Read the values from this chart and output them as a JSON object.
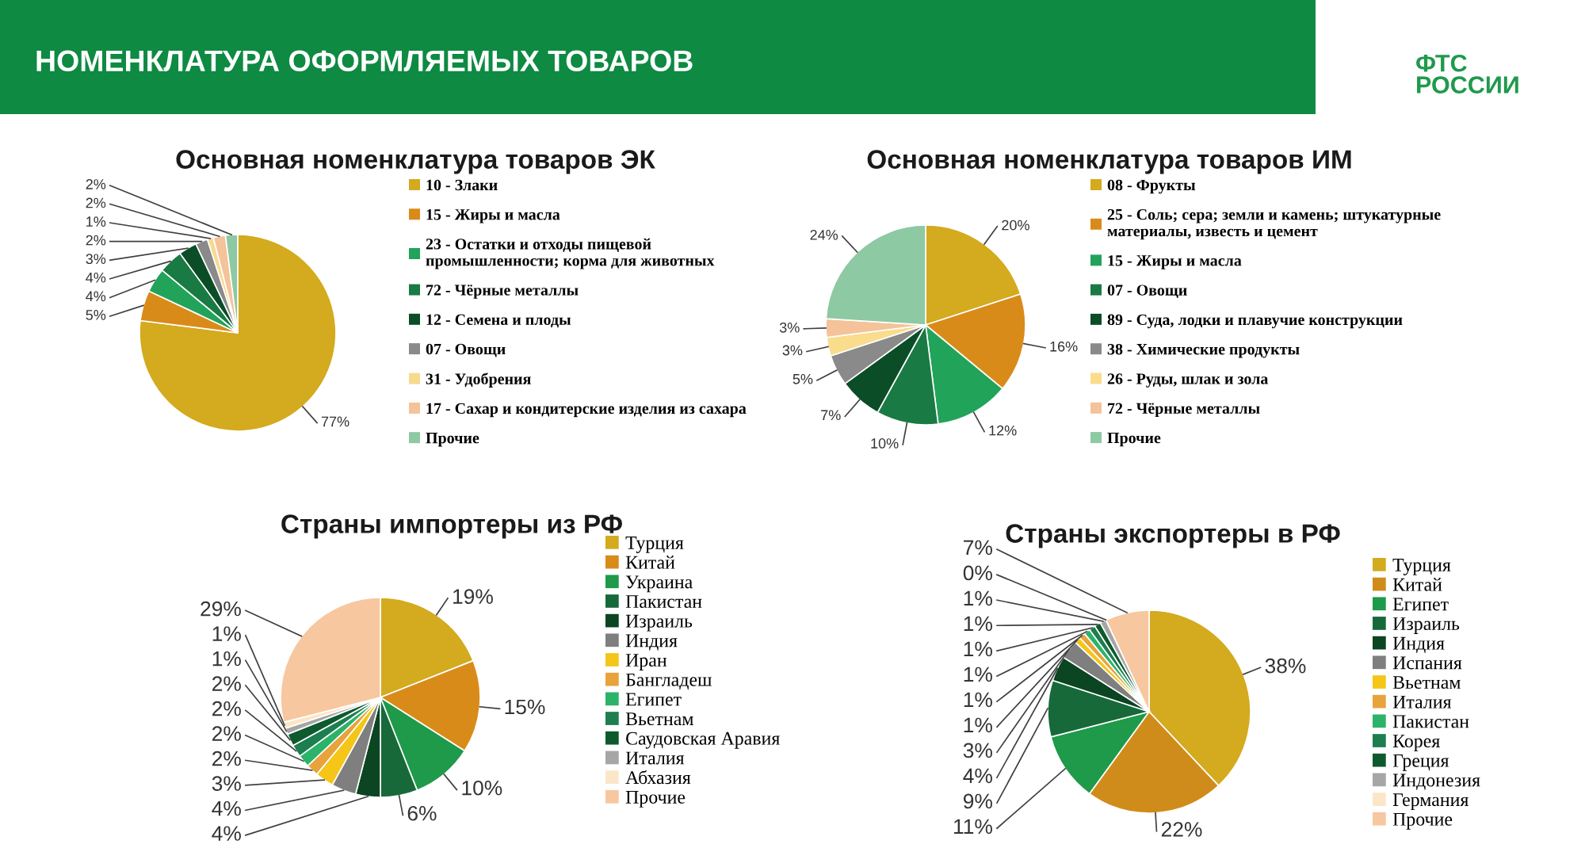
{
  "chart_data": [
    {
      "type": "pie",
      "title": "Основная номенклатура товаров ЭК",
      "categories": [
        "10 - Злаки",
        "15 - Жиры и масла",
        "23 - Остатки и отходы пищевой\nпромышленности; корма для животных",
        "72 - Чёрные металлы",
        "12 - Семена и плоды",
        "07 - Овощи",
        "31 - Удобрения",
        "17 - Сахар и кондитерские изделия из сахара",
        "Прочие"
      ],
      "values": [
        77,
        5,
        4,
        4,
        3,
        2,
        1,
        2,
        2
      ],
      "colors": [
        "#d4aa1e",
        "#d98b1a",
        "#22a35a",
        "#1a7a43",
        "#0b4d27",
        "#8a8a8a",
        "#f7d98f",
        "#f4c39a",
        "#8dc9a3"
      ],
      "value_labels": [
        "77%",
        "5%",
        "4%",
        "4%",
        "3%",
        "2%",
        "1%",
        "2%",
        "2%"
      ],
      "legend": "right",
      "annotations": [
        "НОМЕНКЛАТУРА ОФОРМЛЯЕМЫХ ТОВАРОВ",
        "ФТС\nРОССИИ"
      ]
    },
    {
      "type": "pie",
      "title": "Основная номенклатура товаров ИМ",
      "categories": [
        "08 - Фрукты",
        "25 - Соль; сера; земли и камень; штукатурные\nматериалы, известь и цемент",
        "15 - Жиры и масла",
        "07 - Овощи",
        "89 - Суда, лодки и плавучие конструкции",
        "38 - Химические продукты",
        "26 - Руды, шлак и зола",
        "72 - Чёрные металлы",
        "Прочие"
      ],
      "values": [
        20,
        16,
        12,
        10,
        7,
        5,
        3,
        3,
        24
      ],
      "colors": [
        "#d4aa1e",
        "#d98b1a",
        "#22a35a",
        "#1a7a43",
        "#0b4d27",
        "#8a8a8a",
        "#f9dc8c",
        "#f4c39a",
        "#8dc9a3"
      ],
      "value_labels": [
        "20%",
        "16%",
        "12%",
        "10%",
        "7%",
        "5%",
        "3%",
        "3%",
        "24%"
      ],
      "legend": "right"
    },
    {
      "type": "pie",
      "title": "Страны импортеры из РФ",
      "categories": [
        "Турция",
        "Китай",
        "Украина",
        "Пакистан",
        "Израиль",
        "Индия",
        "Иран",
        "Бангладеш",
        "Египет",
        "Вьетнам",
        "Саудовская Аравия",
        "Италия",
        "Абхазия",
        "Прочие"
      ],
      "values": [
        19,
        15,
        10,
        6,
        4,
        4,
        3,
        2,
        2,
        2,
        2,
        1,
        1,
        29
      ],
      "colors": [
        "#d4aa1e",
        "#d98b1a",
        "#1e9a4a",
        "#17693a",
        "#0b4522",
        "#7f7f7f",
        "#f5c518",
        "#e8a33c",
        "#2cb36a",
        "#1d7e50",
        "#0d5a2e",
        "#a6a6a6",
        "#fce6c8",
        "#f7c7a0"
      ],
      "value_labels": [
        "19%",
        "15%",
        "10%",
        "6%",
        "4%",
        "4%",
        "3%",
        "2%",
        "2%",
        "2%",
        "2%",
        "1%",
        "1%",
        "29%"
      ],
      "legend": "right"
    },
    {
      "type": "pie",
      "title": "Страны экспортеры в РФ",
      "categories": [
        "Турция",
        "Китай",
        "Египет",
        "Израиль",
        "Индия",
        "Испания",
        "Вьетнам",
        "Италия",
        "Пакистан",
        "Корея",
        "Греция",
        "Индонезия",
        "Германия",
        "Прочие"
      ],
      "values": [
        38,
        22,
        11,
        9,
        4,
        3,
        1,
        1,
        1,
        1,
        1,
        1,
        0,
        7
      ],
      "colors": [
        "#d4aa1e",
        "#d08c1a",
        "#1e9a4a",
        "#17693a",
        "#0b4522",
        "#7f7f7f",
        "#f5c518",
        "#e8a33c",
        "#2cb36a",
        "#1d7e50",
        "#0d5a2e",
        "#a6a6a6",
        "#fce6c8",
        "#f7c7a0"
      ],
      "value_labels": [
        "38%",
        "22%",
        "11%",
        "9%",
        "4%",
        "3%",
        "1%",
        "1%",
        "1%",
        "1%",
        "1%",
        "1%",
        "0%",
        "7%"
      ],
      "legend": "right"
    }
  ]
}
